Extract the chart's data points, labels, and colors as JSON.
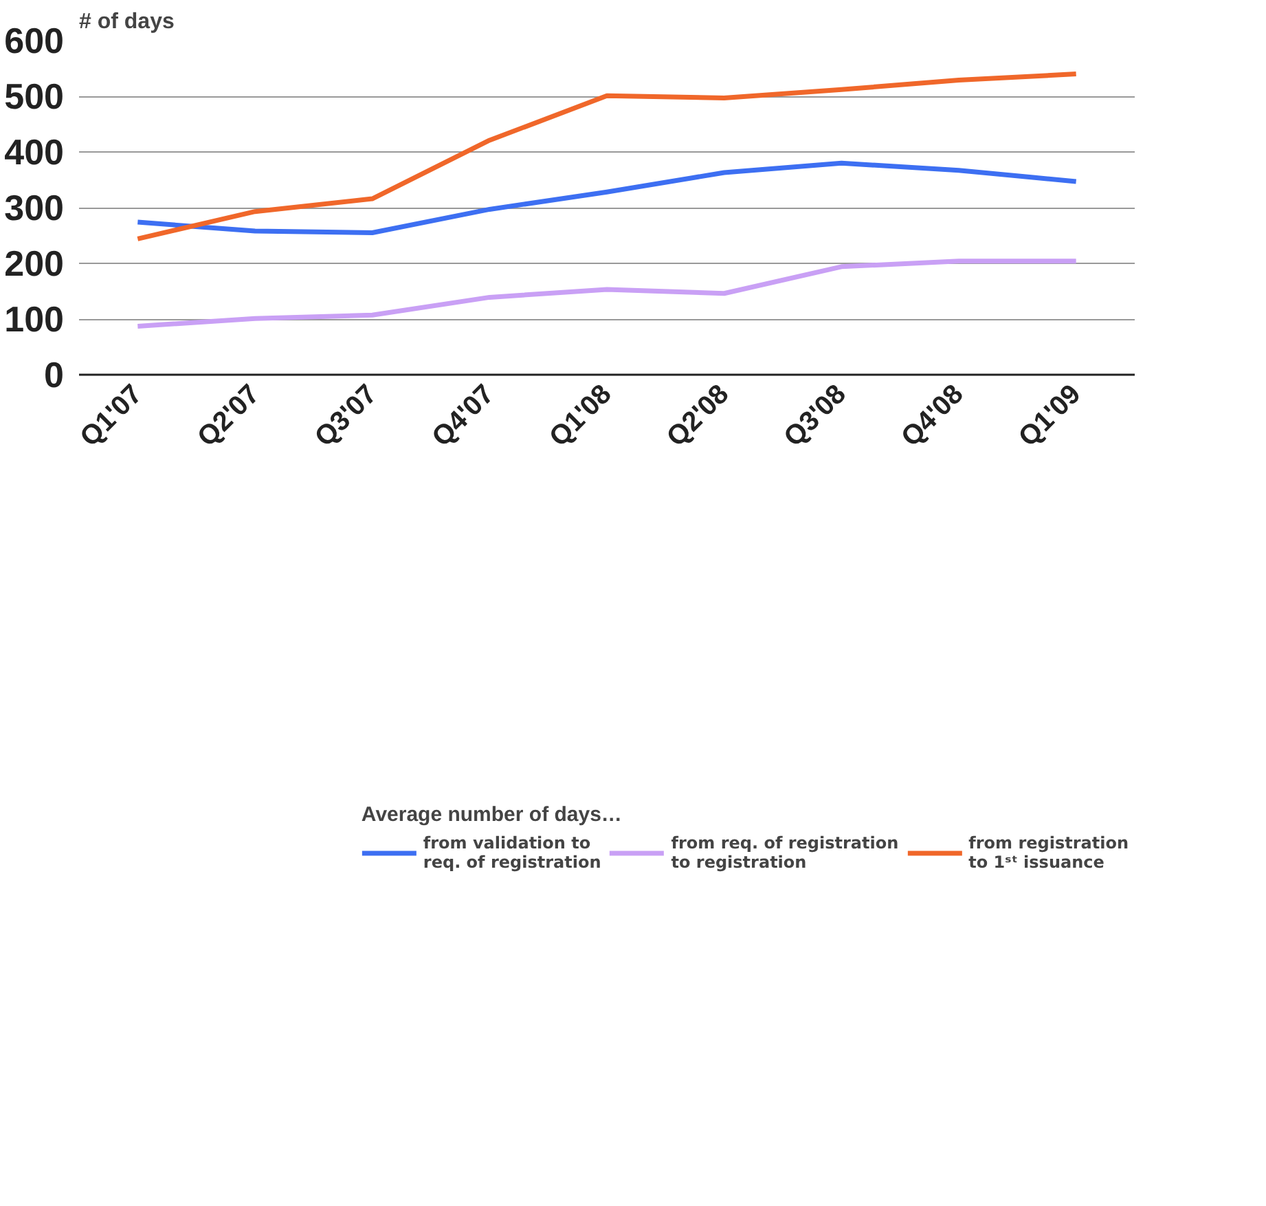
{
  "chart_data": {
    "type": "line",
    "ylabel": "# of days",
    "legend_title": "Average number of days…",
    "categories": [
      "Q1'07",
      "Q2'07",
      "Q3'07",
      "Q4'07",
      "Q1'08",
      "Q2'08",
      "Q3'08",
      "Q4'08",
      "Q1'09"
    ],
    "series": [
      {
        "name": "from validation to req. of registration",
        "color": "#3d6ff2",
        "values": [
          274,
          258,
          255,
          297,
          328,
          363,
          380,
          367,
          347
        ]
      },
      {
        "name": "from req. of registration to registration",
        "color": "#c9a0f5",
        "values": [
          87,
          101,
          107,
          139,
          153,
          146,
          194,
          204,
          204
        ]
      },
      {
        "name": "from registration to 1ˢᵗ issuance",
        "color": "#f0672a",
        "values": [
          244,
          293,
          316,
          421,
          501,
          497,
          512,
          529,
          540
        ]
      }
    ],
    "ylim": [
      0,
      600
    ],
    "yticks": [
      0,
      100,
      200,
      300,
      400,
      500,
      600
    ],
    "grid": "y",
    "legend": "bottom",
    "marker": "none",
    "line_style": "solid"
  }
}
